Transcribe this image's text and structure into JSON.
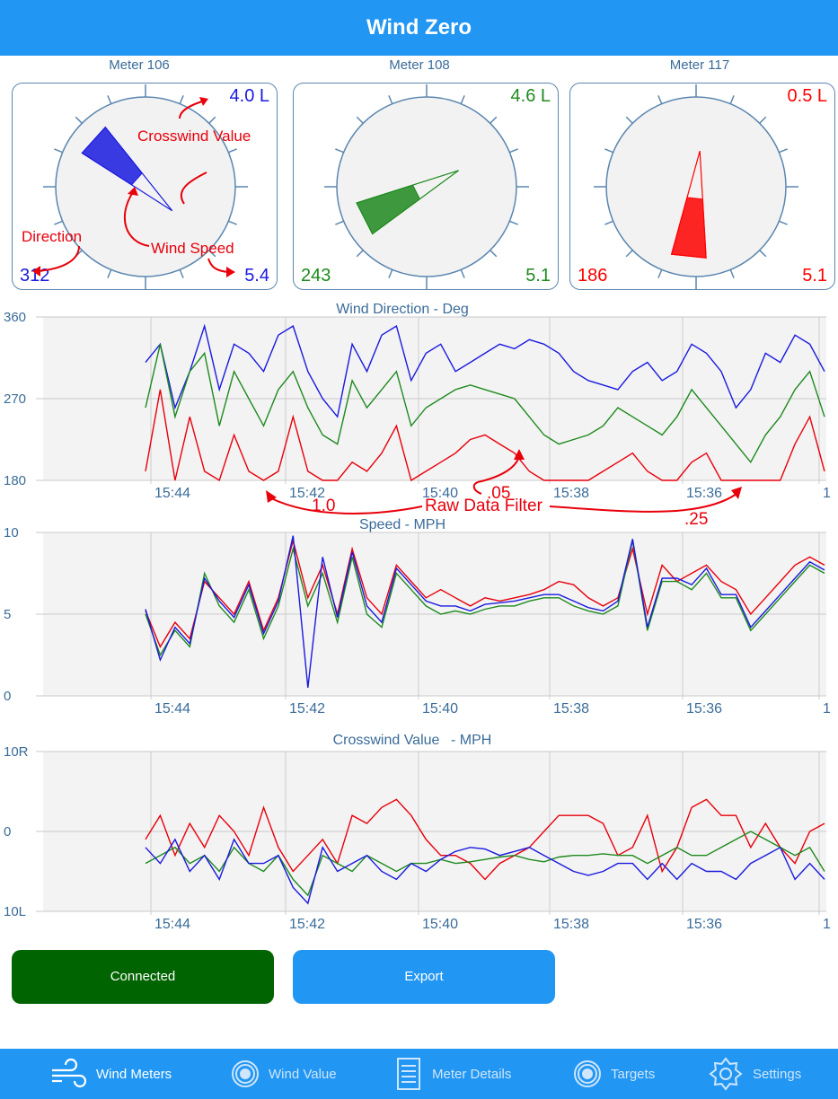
{
  "header": {
    "title": "Wind Zero"
  },
  "meters": [
    {
      "label": "Meter 106",
      "crosswind": "4.0 L",
      "direction": "312",
      "speed": "5.4",
      "color": "#1a1adf",
      "dir_deg": 312
    },
    {
      "label": "Meter 108",
      "crosswind": "4.6 L",
      "direction": "243",
      "speed": "5.1",
      "color": "#1e8a1e",
      "dir_deg": 243
    },
    {
      "label": "Meter 117",
      "crosswind": "0.5 L",
      "direction": "186",
      "speed": "5.1",
      "color": "#ff0000",
      "dir_deg": 186
    }
  ],
  "annotations": {
    "crosswind_value": "Crosswind Value",
    "direction": "Direction",
    "wind_speed": "Wind Speed",
    "raw_data_filter": "Raw Data Filter",
    "filter_1": "1.0",
    "filter_2": ".05",
    "filter_3": ".25"
  },
  "chart_data": [
    {
      "type": "line",
      "title": "Wind Direction - Deg",
      "y_ticks": [
        "360",
        "270",
        "180"
      ],
      "ylim": [
        180,
        360
      ],
      "x_ticks": [
        "15:44",
        "15:42",
        "15:40",
        "15:38",
        "15:36",
        "1"
      ],
      "series": [
        {
          "color": "#1a1adf",
          "values": [
            310,
            330,
            260,
            300,
            350,
            280,
            330,
            320,
            300,
            340,
            350,
            300,
            270,
            250,
            330,
            300,
            340,
            350,
            290,
            320,
            330,
            300,
            310,
            320,
            330,
            325,
            335,
            330,
            320,
            300,
            290,
            285,
            280,
            300,
            310,
            290,
            300,
            330,
            320,
            300,
            260,
            280,
            320,
            310,
            340,
            330,
            300
          ]
        },
        {
          "color": "#1e8a1e",
          "values": [
            260,
            330,
            250,
            300,
            320,
            240,
            300,
            270,
            240,
            280,
            300,
            260,
            230,
            220,
            290,
            260,
            280,
            300,
            240,
            260,
            270,
            280,
            285,
            280,
            275,
            270,
            250,
            230,
            220,
            225,
            230,
            240,
            260,
            250,
            240,
            230,
            250,
            280,
            260,
            240,
            220,
            200,
            230,
            250,
            280,
            300,
            250
          ]
        },
        {
          "color": "#e8000b",
          "values": [
            190,
            280,
            180,
            250,
            190,
            180,
            230,
            190,
            180,
            190,
            250,
            190,
            180,
            180,
            200,
            190,
            210,
            240,
            180,
            190,
            200,
            210,
            225,
            230,
            220,
            210,
            190,
            180,
            180,
            180,
            180,
            190,
            200,
            210,
            190,
            180,
            180,
            200,
            210,
            180,
            180,
            180,
            180,
            180,
            220,
            250,
            190
          ]
        }
      ]
    },
    {
      "type": "line",
      "title": "Speed - MPH",
      "y_ticks": [
        "10",
        "5",
        "0"
      ],
      "ylim": [
        0,
        10
      ],
      "x_ticks": [
        "15:44",
        "15:42",
        "15:40",
        "15:38",
        "15:36",
        "1"
      ],
      "series": [
        {
          "color": "#e8000b",
          "values": [
            5.2,
            3,
            4.5,
            3.5,
            7,
            6,
            5,
            7,
            4,
            6,
            9.5,
            6,
            8,
            5,
            9,
            6,
            5,
            8,
            7,
            6,
            6.5,
            6,
            5.5,
            6,
            5.8,
            6,
            6.2,
            6.5,
            7,
            6.8,
            6,
            5.5,
            6,
            9,
            5,
            8,
            7,
            7.5,
            8,
            7,
            6.5,
            5,
            6,
            7,
            8,
            8.5,
            8
          ]
        },
        {
          "color": "#1e8a1e",
          "values": [
            5,
            2.5,
            4,
            3,
            7.5,
            5.5,
            4.5,
            6.5,
            3.5,
            5.5,
            9,
            5.5,
            7.5,
            4.5,
            8.5,
            5,
            4.2,
            7.5,
            6.5,
            5.5,
            5,
            5.2,
            5,
            5.3,
            5.5,
            5.5,
            5.8,
            6,
            6,
            5.5,
            5.2,
            5,
            5.5,
            9.5,
            4,
            7,
            7,
            6.5,
            7.5,
            6,
            6,
            4,
            5,
            6,
            7,
            8,
            7.5
          ]
        },
        {
          "color": "#1a1adf",
          "values": [
            5.3,
            2.2,
            4.2,
            3.2,
            7.2,
            5.8,
            4.8,
            6.8,
            3.8,
            5.8,
            9.8,
            0.5,
            8.5,
            4.8,
            8.8,
            5.5,
            4.5,
            7.8,
            6.8,
            5.8,
            5.5,
            5.5,
            5.2,
            5.6,
            5.7,
            5.8,
            6,
            6.2,
            6.2,
            5.8,
            5.4,
            5.2,
            5.8,
            9.6,
            4.2,
            7.2,
            7.2,
            6.8,
            7.8,
            6.2,
            6.2,
            4.2,
            5.2,
            6.2,
            7.2,
            8.2,
            7.7
          ]
        }
      ]
    },
    {
      "type": "line",
      "title": "Crosswind Value",
      "title_unit": "- MPH",
      "y_ticks": [
        "10R",
        "0",
        "10L"
      ],
      "ylim": [
        -10,
        10
      ],
      "x_ticks": [
        "15:44",
        "15:42",
        "15:40",
        "15:38",
        "15:36",
        "1"
      ],
      "series": [
        {
          "color": "#e8000b",
          "values": [
            -1,
            2,
            -3,
            1,
            -2,
            2,
            0,
            -3,
            3,
            -2,
            -5,
            -3,
            -1,
            -4,
            2,
            1,
            3,
            4,
            2,
            -1,
            -3,
            -3,
            -4,
            -6,
            -4,
            -3,
            -2,
            0,
            2,
            2,
            2,
            1,
            -3,
            -2,
            2,
            -5,
            -2,
            3,
            4,
            2,
            2,
            -2,
            1,
            -2,
            -4,
            0,
            1
          ]
        },
        {
          "color": "#1e8a1e",
          "values": [
            -4,
            -3,
            -2,
            -4,
            -3,
            -5,
            -2,
            -4,
            -5,
            -3,
            -6,
            -8,
            -3,
            -4,
            -5,
            -3,
            -4,
            -5,
            -4,
            -4,
            -3.5,
            -4,
            -3.8,
            -3.5,
            -3.2,
            -3,
            -3.5,
            -3.8,
            -3.2,
            -3,
            -3,
            -2.8,
            -3,
            -3,
            -4,
            -3,
            -2,
            -3,
            -3,
            -2,
            -1,
            0,
            -1,
            -2,
            -3,
            -2,
            -5
          ]
        },
        {
          "color": "#1a1adf",
          "values": [
            -2,
            -4,
            -1,
            -5,
            -3,
            -6,
            -1,
            -4,
            -4,
            -3,
            -7,
            -9,
            -2,
            -5,
            -4,
            -3,
            -5,
            -6,
            -4,
            -5,
            -3.5,
            -2.5,
            -2,
            -2.2,
            -3,
            -2.5,
            -2,
            -3,
            -4,
            -5,
            -5.5,
            -5,
            -4,
            -4,
            -6,
            -4,
            -6,
            -4,
            -5,
            -5,
            -6,
            -4,
            -3,
            -2,
            -6,
            -4,
            -6
          ]
        }
      ]
    }
  ],
  "buttons": {
    "connected": "Connected",
    "export": "Export",
    "connected_color": "#006400",
    "export_color": "#2196f3"
  },
  "tabs": [
    {
      "label": "Wind Meters",
      "icon": "wind-icon"
    },
    {
      "label": "Wind Value",
      "icon": "target-icon"
    },
    {
      "label": "Meter Details",
      "icon": "list-icon"
    },
    {
      "label": "Targets",
      "icon": "target-icon"
    },
    {
      "label": "Settings",
      "icon": "gear-icon"
    }
  ]
}
